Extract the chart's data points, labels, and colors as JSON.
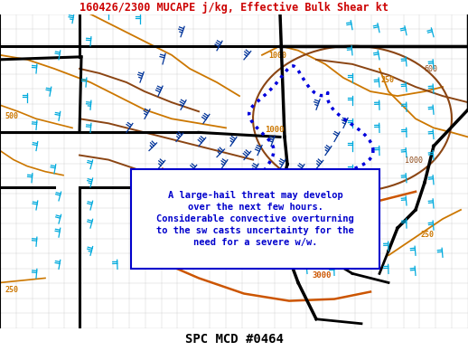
{
  "title": "160426/2300 MUCAPE j/kg, Effective Bulk Shear kt",
  "title_color": "#cc0000",
  "title_fontsize": 8.5,
  "footer": "SPC MCD #0464",
  "footer_fontsize": 10,
  "footer_color": "#000000",
  "bg_color": "#ffffff",
  "map_bg": "#f0f0f0",
  "annotation_text": "A large-hail threat may develop\n over the next few hours.\nConsiderable convective overturning\n to the sw casts uncertainty for the\n  need for a severe w/w.",
  "annotation_color": "#0000cc",
  "annotation_bg": "#ffffff",
  "annotation_border": "#0000cc",
  "annotation_fontsize": 7.5,
  "orange_color": "#cc7700",
  "dark_orange_color": "#cc5500",
  "brown_color": "#8b4513",
  "blue_color": "#003399",
  "cyan_color": "#00aadd",
  "blob_color": "#0000dd",
  "state_color": "#000000",
  "county_color": "#cccccc",
  "red_color": "#cc2200"
}
